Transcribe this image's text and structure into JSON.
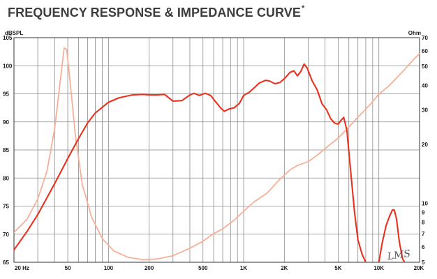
{
  "title": {
    "text": "FREQUENCY RESPONSE & IMPEDANCE CURVE",
    "mark": "*"
  },
  "watermark": "LMS",
  "colors": {
    "spl": "#e8321e",
    "impedance": "#f7b097",
    "grid": "#8a8a8a",
    "frame": "#333333"
  },
  "chart_data": {
    "type": "line",
    "title": "FREQUENCY RESPONSE & IMPEDANCE CURVE",
    "xlabel": "",
    "x_scale": "log",
    "xlim": [
      20,
      20000
    ],
    "x_ticks": [
      {
        "v": 20,
        "label": "20 Hz"
      },
      {
        "v": 50,
        "label": "50"
      },
      {
        "v": 100,
        "label": "100"
      },
      {
        "v": 200,
        "label": "200"
      },
      {
        "v": 500,
        "label": "500"
      },
      {
        "v": 1000,
        "label": "1K"
      },
      {
        "v": 2000,
        "label": "2K"
      },
      {
        "v": 5000,
        "label": "5K"
      },
      {
        "v": 10000,
        "label": "10K"
      },
      {
        "v": 20000,
        "label": "20K"
      }
    ],
    "y_left": {
      "label": "dBSPL",
      "lim": [
        65,
        105
      ],
      "ticks": [
        65,
        70,
        75,
        80,
        85,
        90,
        95,
        100,
        105
      ]
    },
    "y_right": {
      "label": "Ohm",
      "scale": "log",
      "lim": [
        5,
        70
      ],
      "ticks": [
        5,
        6,
        7,
        8,
        9,
        10,
        20,
        30,
        40,
        50,
        60,
        70
      ]
    },
    "grid": true,
    "series": [
      {
        "key": "spl",
        "axis": "left",
        "points": [
          [
            20,
            67.2
          ],
          [
            25,
            70.5
          ],
          [
            30,
            73.5
          ],
          [
            40,
            79
          ],
          [
            50,
            83.5
          ],
          [
            60,
            87
          ],
          [
            70,
            89.8
          ],
          [
            80,
            91.6
          ],
          [
            100,
            93.5
          ],
          [
            120,
            94.3
          ],
          [
            150,
            94.8
          ],
          [
            180,
            94.9
          ],
          [
            200,
            94.8
          ],
          [
            230,
            94.8
          ],
          [
            260,
            94.9
          ],
          [
            300,
            93.7
          ],
          [
            350,
            93.8
          ],
          [
            400,
            94.8
          ],
          [
            430,
            95.1
          ],
          [
            470,
            94.7
          ],
          [
            520,
            95.1
          ],
          [
            570,
            94.7
          ],
          [
            620,
            93.6
          ],
          [
            680,
            92.4
          ],
          [
            720,
            91.9
          ],
          [
            780,
            92.3
          ],
          [
            850,
            92.5
          ],
          [
            930,
            93.3
          ],
          [
            1000,
            94.7
          ],
          [
            1100,
            95.3
          ],
          [
            1200,
            96.1
          ],
          [
            1300,
            96.9
          ],
          [
            1450,
            97.4
          ],
          [
            1550,
            97.3
          ],
          [
            1700,
            96.8
          ],
          [
            1850,
            97.0
          ],
          [
            2000,
            97.7
          ],
          [
            2200,
            98.8
          ],
          [
            2350,
            99.1
          ],
          [
            2500,
            98.2
          ],
          [
            2650,
            99.0
          ],
          [
            2800,
            100.3
          ],
          [
            2950,
            99.6
          ],
          [
            3200,
            97.4
          ],
          [
            3500,
            95.7
          ],
          [
            3800,
            93.2
          ],
          [
            4100,
            92.2
          ],
          [
            4400,
            90.6
          ],
          [
            4700,
            89.8
          ],
          [
            5000,
            89.6
          ],
          [
            5300,
            90.4
          ],
          [
            5500,
            90.8
          ],
          [
            5800,
            88.5
          ],
          [
            6200,
            81
          ],
          [
            6600,
            74
          ],
          [
            7000,
            69
          ],
          [
            7500,
            66.5
          ],
          [
            8000,
            65
          ]
        ]
      },
      {
        "key": "spl_hf",
        "axis": "left",
        "points": [
          [
            10000,
            65
          ],
          [
            10600,
            68.5
          ],
          [
            11300,
            71.5
          ],
          [
            12000,
            73.2
          ],
          [
            12600,
            74.3
          ],
          [
            13000,
            74.3
          ],
          [
            13500,
            72.8
          ],
          [
            14200,
            68.5
          ],
          [
            15000,
            65.6
          ],
          [
            15500,
            65
          ]
        ]
      },
      {
        "key": "impedance",
        "axis": "right",
        "points": [
          [
            20,
            7.1
          ],
          [
            25,
            8.3
          ],
          [
            30,
            10.5
          ],
          [
            35,
            14.5
          ],
          [
            40,
            24
          ],
          [
            44,
            42
          ],
          [
            47,
            62
          ],
          [
            49,
            61
          ],
          [
            52,
            42
          ],
          [
            57,
            22
          ],
          [
            64,
            12.5
          ],
          [
            75,
            8.5
          ],
          [
            90,
            6.6
          ],
          [
            110,
            5.7
          ],
          [
            140,
            5.3
          ],
          [
            180,
            5.15
          ],
          [
            230,
            5.2
          ],
          [
            300,
            5.4
          ],
          [
            400,
            5.9
          ],
          [
            500,
            6.4
          ],
          [
            600,
            7.0
          ],
          [
            700,
            7.4
          ],
          [
            850,
            8.2
          ],
          [
            1000,
            9.1
          ],
          [
            1200,
            10.2
          ],
          [
            1500,
            11.3
          ],
          [
            1800,
            13.0
          ],
          [
            2200,
            14.8
          ],
          [
            2500,
            15.6
          ],
          [
            3000,
            16.3
          ],
          [
            3500,
            17.6
          ],
          [
            4000,
            19.0
          ],
          [
            5000,
            21.5
          ],
          [
            6000,
            24.5
          ],
          [
            7000,
            27.5
          ],
          [
            8000,
            30.2
          ],
          [
            9000,
            33.0
          ],
          [
            10000,
            36.0
          ],
          [
            12000,
            40.0
          ],
          [
            15000,
            47.0
          ],
          [
            18000,
            54.0
          ],
          [
            20000,
            58.0
          ]
        ]
      }
    ]
  }
}
